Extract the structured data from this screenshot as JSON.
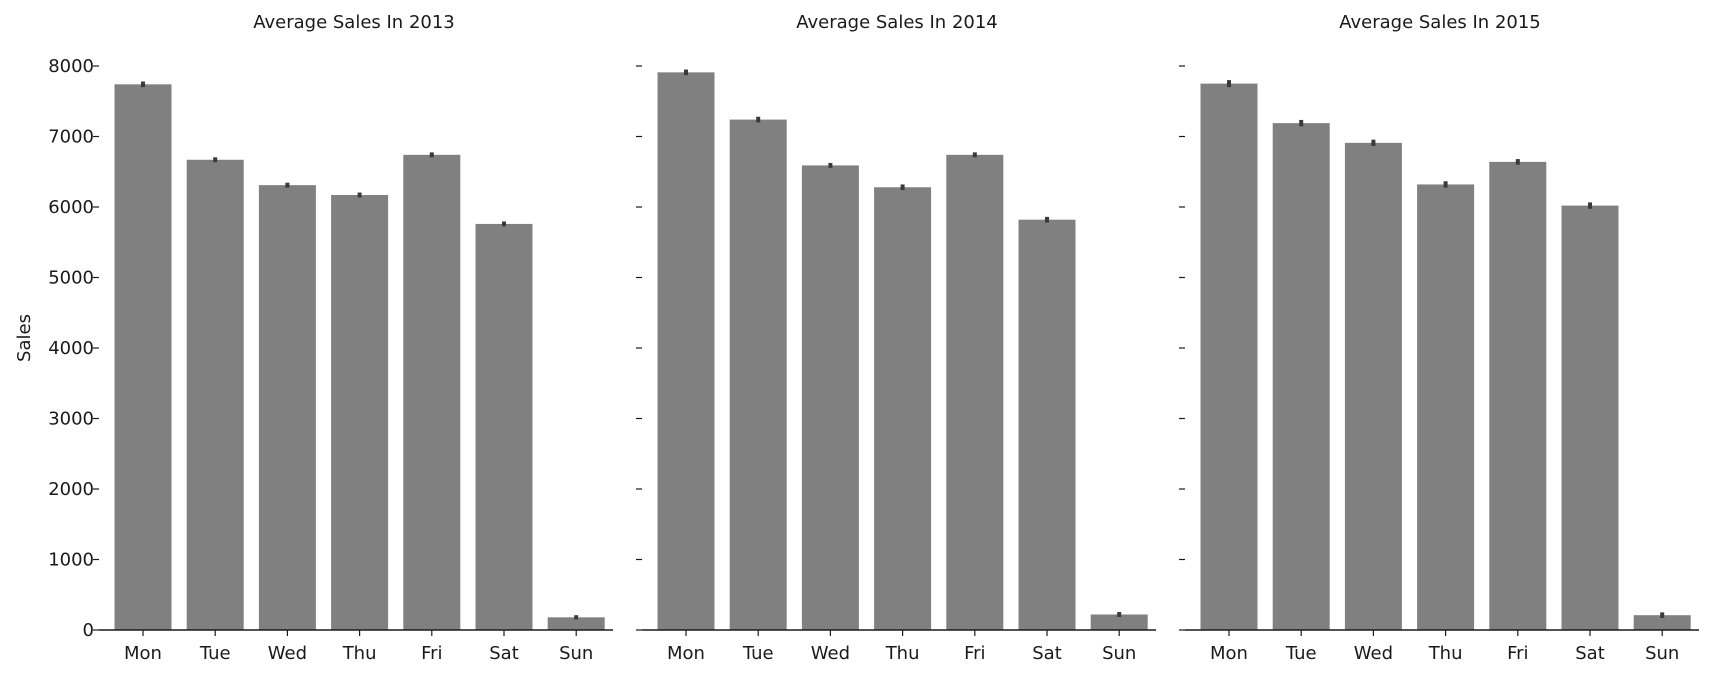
{
  "chart_data": [
    {
      "type": "bar",
      "title": "Average Sales In 2013",
      "ylabel": "Sales",
      "categories": [
        "Mon",
        "Tue",
        "Wed",
        "Thu",
        "Fri",
        "Sat",
        "Sun"
      ],
      "values": [
        7740,
        6670,
        6310,
        6170,
        6740,
        5760,
        180
      ],
      "errors": [
        40,
        35,
        35,
        35,
        35,
        35,
        30
      ],
      "ylim": [
        0,
        8000
      ],
      "yticks": [
        0,
        1000,
        2000,
        3000,
        4000,
        5000,
        6000,
        7000,
        8000
      ],
      "bar_color": "#808080",
      "grid": false
    },
    {
      "type": "bar",
      "title": "Average Sales In 2014",
      "ylabel": "",
      "categories": [
        "Mon",
        "Tue",
        "Wed",
        "Thu",
        "Fri",
        "Sat",
        "Sun"
      ],
      "values": [
        7910,
        7240,
        6590,
        6280,
        6740,
        5820,
        220
      ],
      "errors": [
        40,
        40,
        35,
        40,
        35,
        40,
        35
      ],
      "ylim": [
        0,
        8000
      ],
      "yticks": [
        0,
        1000,
        2000,
        3000,
        4000,
        5000,
        6000,
        7000,
        8000
      ],
      "bar_color": "#808080",
      "grid": false
    },
    {
      "type": "bar",
      "title": "Average Sales In 2015",
      "ylabel": "",
      "categories": [
        "Mon",
        "Tue",
        "Wed",
        "Thu",
        "Fri",
        "Sat",
        "Sun"
      ],
      "values": [
        7750,
        7190,
        6910,
        6320,
        6640,
        6020,
        210
      ],
      "errors": [
        50,
        45,
        45,
        45,
        40,
        45,
        40
      ],
      "ylim": [
        0,
        8000
      ],
      "yticks": [
        0,
        1000,
        2000,
        3000,
        4000,
        5000,
        6000,
        7000,
        8000
      ],
      "bar_color": "#808080",
      "grid": false
    }
  ]
}
